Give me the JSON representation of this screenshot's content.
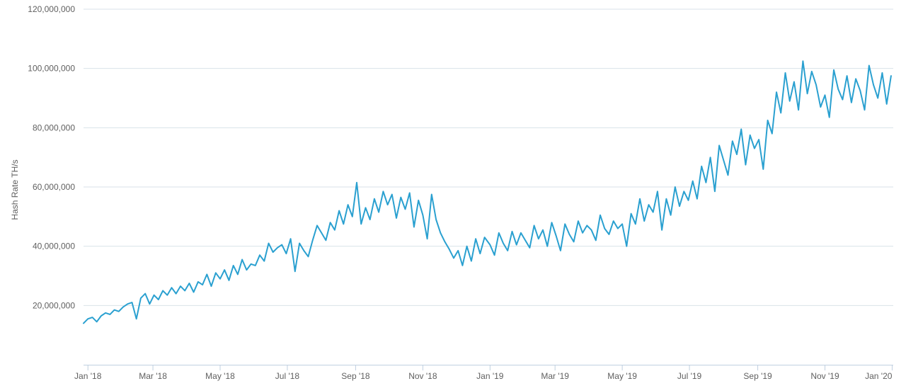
{
  "chart_data": {
    "type": "line",
    "title": "",
    "xlabel": "",
    "ylabel": "Hash Rate TH/s",
    "x_range": [
      "2017-12-28",
      "2020-01-02"
    ],
    "ylim": [
      0,
      120000000
    ],
    "grid": {
      "horizontal": true,
      "vertical": false
    },
    "legend": "none",
    "colors": {
      "series": "#2aa0d0",
      "grid": "#d9e2e8",
      "axis": "#c0d0e0",
      "text": "#606060"
    },
    "y_ticks": [
      {
        "value": 20000000,
        "label": "20,000,000"
      },
      {
        "value": 40000000,
        "label": "40,000,000"
      },
      {
        "value": 60000000,
        "label": "60,000,000"
      },
      {
        "value": 80000000,
        "label": "80,000,000"
      },
      {
        "value": 100000000,
        "label": "100,000,000"
      },
      {
        "value": 120000000,
        "label": "120,000,000"
      }
    ],
    "x_ticks": [
      {
        "date": "2018-01-01",
        "label": "Jan '18"
      },
      {
        "date": "2018-03-01",
        "label": "Mar '18"
      },
      {
        "date": "2018-05-01",
        "label": "May '18"
      },
      {
        "date": "2018-07-01",
        "label": "Jul '18"
      },
      {
        "date": "2018-09-01",
        "label": "Sep '18"
      },
      {
        "date": "2018-11-01",
        "label": "Nov '18"
      },
      {
        "date": "2019-01-01",
        "label": "Jan '19"
      },
      {
        "date": "2019-03-01",
        "label": "Mar '19"
      },
      {
        "date": "2019-05-01",
        "label": "May '19"
      },
      {
        "date": "2019-07-01",
        "label": "Jul '19"
      },
      {
        "date": "2019-09-01",
        "label": "Sep '19"
      },
      {
        "date": "2019-11-01",
        "label": "Nov '19"
      },
      {
        "date": "2020-01-01",
        "label": "Jan '20"
      }
    ],
    "series": [
      {
        "x": [
          "2017-12-28",
          "2018-01-01",
          "2018-01-05",
          "2018-01-09",
          "2018-01-13",
          "2018-01-17",
          "2018-01-21",
          "2018-01-25",
          "2018-01-29",
          "2018-02-02",
          "2018-02-06",
          "2018-02-10",
          "2018-02-14",
          "2018-02-18",
          "2018-02-22",
          "2018-02-26",
          "2018-03-02",
          "2018-03-06",
          "2018-03-10",
          "2018-03-14",
          "2018-03-18",
          "2018-03-22",
          "2018-03-26",
          "2018-03-30",
          "2018-04-03",
          "2018-04-07",
          "2018-04-11",
          "2018-04-15",
          "2018-04-19",
          "2018-04-23",
          "2018-04-27",
          "2018-05-01",
          "2018-05-05",
          "2018-05-09",
          "2018-05-13",
          "2018-05-17",
          "2018-05-21",
          "2018-05-25",
          "2018-05-29",
          "2018-06-02",
          "2018-06-06",
          "2018-06-10",
          "2018-06-14",
          "2018-06-18",
          "2018-06-22",
          "2018-06-26",
          "2018-06-30",
          "2018-07-04",
          "2018-07-08",
          "2018-07-12",
          "2018-07-16",
          "2018-07-20",
          "2018-07-24",
          "2018-07-28",
          "2018-08-01",
          "2018-08-05",
          "2018-08-09",
          "2018-08-13",
          "2018-08-17",
          "2018-08-21",
          "2018-08-25",
          "2018-08-29",
          "2018-09-02",
          "2018-09-06",
          "2018-09-10",
          "2018-09-14",
          "2018-09-18",
          "2018-09-22",
          "2018-09-26",
          "2018-09-30",
          "2018-10-04",
          "2018-10-08",
          "2018-10-12",
          "2018-10-16",
          "2018-10-20",
          "2018-10-24",
          "2018-10-28",
          "2018-11-01",
          "2018-11-05",
          "2018-11-09",
          "2018-11-13",
          "2018-11-17",
          "2018-11-21",
          "2018-11-25",
          "2018-11-29",
          "2018-12-03",
          "2018-12-07",
          "2018-12-11",
          "2018-12-15",
          "2018-12-19",
          "2018-12-23",
          "2018-12-27",
          "2019-01-01",
          "2019-01-05",
          "2019-01-09",
          "2019-01-13",
          "2019-01-17",
          "2019-01-21",
          "2019-01-25",
          "2019-01-29",
          "2019-02-02",
          "2019-02-06",
          "2019-02-10",
          "2019-02-14",
          "2019-02-18",
          "2019-02-22",
          "2019-02-26",
          "2019-03-02",
          "2019-03-06",
          "2019-03-10",
          "2019-03-14",
          "2019-03-18",
          "2019-03-22",
          "2019-03-26",
          "2019-03-30",
          "2019-04-03",
          "2019-04-07",
          "2019-04-11",
          "2019-04-15",
          "2019-04-19",
          "2019-04-23",
          "2019-04-27",
          "2019-05-01",
          "2019-05-05",
          "2019-05-09",
          "2019-05-13",
          "2019-05-17",
          "2019-05-21",
          "2019-05-25",
          "2019-05-29",
          "2019-06-02",
          "2019-06-06",
          "2019-06-10",
          "2019-06-14",
          "2019-06-18",
          "2019-06-22",
          "2019-06-26",
          "2019-06-30",
          "2019-07-04",
          "2019-07-08",
          "2019-07-12",
          "2019-07-16",
          "2019-07-20",
          "2019-07-24",
          "2019-07-28",
          "2019-08-01",
          "2019-08-05",
          "2019-08-09",
          "2019-08-13",
          "2019-08-17",
          "2019-08-21",
          "2019-08-25",
          "2019-08-29",
          "2019-09-02",
          "2019-09-06",
          "2019-09-10",
          "2019-09-14",
          "2019-09-18",
          "2019-09-22",
          "2019-09-26",
          "2019-09-30",
          "2019-10-04",
          "2019-10-08",
          "2019-10-12",
          "2019-10-16",
          "2019-10-20",
          "2019-10-24",
          "2019-10-28",
          "2019-11-01",
          "2019-11-05",
          "2019-11-09",
          "2019-11-13",
          "2019-11-17",
          "2019-11-21",
          "2019-11-25",
          "2019-11-29",
          "2019-12-03",
          "2019-12-07",
          "2019-12-11",
          "2019-12-15",
          "2019-12-19",
          "2019-12-23",
          "2019-12-27",
          "2019-12-31"
        ],
        "values": [
          14000000,
          15500000,
          16000000,
          14500000,
          16500000,
          17500000,
          17000000,
          18500000,
          18000000,
          19500000,
          20500000,
          21000000,
          15500000,
          22500000,
          24000000,
          20500000,
          23500000,
          22000000,
          25000000,
          23500000,
          26000000,
          24000000,
          26500000,
          25000000,
          27500000,
          24500000,
          28000000,
          27000000,
          30500000,
          26500000,
          31000000,
          29000000,
          32000000,
          28500000,
          33500000,
          30500000,
          35500000,
          32000000,
          34000000,
          33500000,
          37000000,
          35000000,
          41000000,
          38000000,
          39500000,
          40500000,
          37500000,
          42500000,
          31500000,
          41000000,
          38500000,
          36500000,
          42000000,
          47000000,
          44500000,
          42000000,
          48000000,
          45500000,
          52000000,
          47500000,
          54000000,
          50000000,
          61500000,
          47500000,
          53000000,
          49000000,
          56000000,
          51500000,
          58500000,
          54000000,
          57500000,
          49500000,
          56500000,
          52500000,
          58000000,
          46500000,
          55500000,
          50500000,
          42500000,
          57500000,
          49000000,
          44500000,
          41500000,
          39000000,
          36000000,
          38500000,
          33500000,
          40000000,
          35000000,
          42500000,
          37500000,
          43000000,
          40500000,
          37000000,
          44500000,
          41000000,
          38500000,
          45000000,
          40500000,
          44500000,
          42000000,
          39500000,
          47000000,
          42500000,
          45500000,
          40000000,
          48000000,
          43500000,
          38500000,
          47500000,
          44000000,
          41500000,
          48500000,
          44500000,
          47000000,
          45500000,
          42000000,
          50500000,
          46000000,
          44000000,
          48500000,
          46000000,
          47500000,
          40000000,
          51000000,
          47500000,
          56000000,
          48500000,
          54000000,
          51500000,
          58500000,
          45500000,
          56000000,
          50500000,
          60000000,
          53500000,
          58500000,
          55500000,
          62000000,
          56000000,
          67000000,
          61500000,
          70000000,
          58500000,
          74000000,
          69000000,
          64000000,
          75500000,
          71000000,
          79500000,
          67500000,
          77500000,
          73000000,
          76000000,
          66000000,
          82500000,
          78000000,
          92000000,
          85000000,
          98500000,
          89000000,
          95500000,
          86000000,
          102500000,
          91500000,
          99000000,
          94500000,
          87000000,
          91000000,
          83500000,
          99500000,
          93000000,
          89500000,
          97500000,
          88500000,
          96500000,
          92500000,
          86000000,
          101000000,
          94500000,
          90000000,
          98500000,
          88000000,
          97500000
        ]
      }
    ]
  }
}
